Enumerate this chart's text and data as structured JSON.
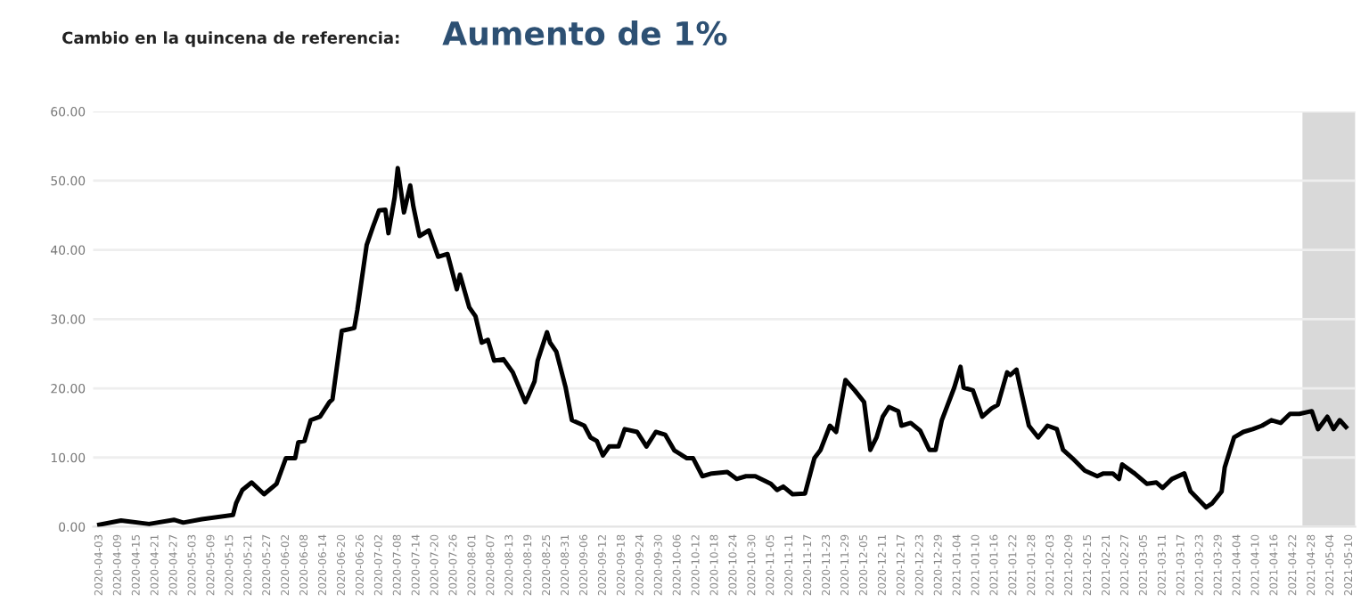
{
  "chart_data": {
    "type": "line",
    "title": "Cambio en la quincena de referencia:",
    "subtitle": "Aumento de 1%",
    "x": [
      "2020-04-03",
      "2020-04-10",
      "2020-04-19",
      "2020-04-27",
      "2020-04-30",
      "2020-05-06",
      "2020-05-16",
      "2020-05-17",
      "2020-05-19",
      "2020-05-22",
      "2020-05-26",
      "2020-05-30",
      "2020-06-02",
      "2020-06-05",
      "2020-06-06",
      "2020-06-08",
      "2020-06-10",
      "2020-06-13",
      "2020-06-16",
      "2020-06-17",
      "2020-06-20",
      "2020-06-24",
      "2020-06-25",
      "2020-06-28",
      "2020-06-30",
      "2020-07-02",
      "2020-07-04",
      "2020-07-05",
      "2020-07-07",
      "2020-07-08",
      "2020-07-10",
      "2020-07-12",
      "2020-07-13",
      "2020-07-15",
      "2020-07-18",
      "2020-07-21",
      "2020-07-24",
      "2020-07-27",
      "2020-07-28",
      "2020-07-31",
      "2020-08-02",
      "2020-08-04",
      "2020-08-06",
      "2020-08-08",
      "2020-08-11",
      "2020-08-14",
      "2020-08-18",
      "2020-08-19",
      "2020-08-21",
      "2020-08-22",
      "2020-08-25",
      "2020-08-26",
      "2020-08-28",
      "2020-08-31",
      "2020-09-02",
      "2020-09-06",
      "2020-09-08",
      "2020-09-10",
      "2020-09-12",
      "2020-09-14",
      "2020-09-17",
      "2020-09-19",
      "2020-09-23",
      "2020-09-26",
      "2020-09-29",
      "2020-10-02",
      "2020-10-05",
      "2020-10-09",
      "2020-10-11",
      "2020-10-14",
      "2020-10-17",
      "2020-10-22",
      "2020-10-25",
      "2020-10-28",
      "2020-10-31",
      "2020-11-05",
      "2020-11-07",
      "2020-11-09",
      "2020-11-12",
      "2020-11-16",
      "2020-11-19",
      "2020-11-21",
      "2020-11-24",
      "2020-11-26",
      "2020-11-29",
      "2020-12-02",
      "2020-12-05",
      "2020-12-07",
      "2020-12-09",
      "2020-12-11",
      "2020-12-13",
      "2020-12-16",
      "2020-12-17",
      "2020-12-20",
      "2020-12-23",
      "2020-12-26",
      "2020-12-28",
      "2020-12-30",
      "2021-01-03",
      "2021-01-05",
      "2021-01-06",
      "2021-01-09",
      "2021-01-12",
      "2021-01-15",
      "2021-01-17",
      "2021-01-20",
      "2021-01-21",
      "2021-01-23",
      "2021-01-24",
      "2021-01-27",
      "2021-01-30",
      "2021-02-02",
      "2021-02-05",
      "2021-02-07",
      "2021-02-10",
      "2021-02-14",
      "2021-02-18",
      "2021-02-20",
      "2021-02-23",
      "2021-02-25",
      "2021-02-26",
      "2021-03-02",
      "2021-03-06",
      "2021-03-09",
      "2021-03-11",
      "2021-03-14",
      "2021-03-18",
      "2021-03-20",
      "2021-03-25",
      "2021-03-27",
      "2021-03-30",
      "2021-03-31",
      "2021-04-03",
      "2021-04-06",
      "2021-04-09",
      "2021-04-12",
      "2021-04-15",
      "2021-04-18",
      "2021-04-21",
      "2021-04-24",
      "2021-04-28",
      "2021-04-30",
      "2021-05-03",
      "2021-05-05",
      "2021-05-07",
      "2021-05-09"
    ],
    "series": [
      {
        "color": "#000000",
        "values": [
          0.3,
          0.9,
          0.4,
          1.0,
          0.6,
          1.1,
          1.7,
          3.4,
          5.3,
          6.4,
          4.7,
          6.2,
          9.9,
          9.9,
          12.2,
          12.4,
          15.4,
          15.9,
          18.0,
          18.4,
          28.3,
          28.7,
          31.3,
          40.7,
          43.3,
          45.7,
          45.8,
          42.4,
          47.6,
          51.8,
          45.4,
          49.3,
          46.3,
          42.0,
          42.8,
          39.0,
          39.4,
          34.3,
          36.4,
          31.7,
          30.4,
          26.6,
          27.0,
          24.0,
          24.2,
          22.3,
          18.0,
          18.9,
          21.0,
          24.0,
          28.1,
          26.6,
          25.3,
          20.1,
          15.4,
          14.6,
          12.9,
          12.4,
          10.3,
          11.6,
          11.6,
          14.1,
          13.7,
          11.6,
          13.7,
          13.3,
          11.0,
          9.9,
          9.9,
          7.3,
          7.7,
          7.9,
          6.9,
          7.3,
          7.3,
          6.2,
          5.3,
          5.8,
          4.7,
          4.8,
          9.9,
          11.1,
          14.6,
          13.7,
          21.2,
          19.7,
          18.0,
          11.1,
          12.9,
          15.9,
          17.3,
          16.7,
          14.6,
          15.0,
          13.9,
          11.1,
          11.1,
          15.4,
          20.1,
          23.1,
          20.1,
          19.7,
          15.9,
          17.1,
          17.6,
          22.3,
          21.9,
          22.7,
          20.6,
          14.6,
          12.9,
          14.6,
          14.1,
          11.1,
          9.9,
          8.1,
          7.3,
          7.7,
          7.7,
          6.9,
          9.0,
          7.7,
          6.2,
          6.4,
          5.6,
          6.9,
          7.7,
          5.1,
          2.8,
          3.4,
          5.1,
          8.6,
          12.9,
          13.7,
          14.1,
          14.6,
          15.4,
          15.0,
          16.3,
          16.3,
          16.7,
          14.1,
          15.9,
          14.1,
          15.4,
          14.4
        ]
      }
    ],
    "xlim": [
      "2020-04-01",
      "2021-05-12"
    ],
    "xticks": [
      "2020-04-03",
      "2020-04-09",
      "2020-04-15",
      "2020-04-21",
      "2020-04-27",
      "2020-05-03",
      "2020-05-09",
      "2020-05-15",
      "2020-05-21",
      "2020-05-27",
      "2020-06-02",
      "2020-06-08",
      "2020-06-14",
      "2020-06-20",
      "2020-06-26",
      "2020-07-02",
      "2020-07-08",
      "2020-07-14",
      "2020-07-20",
      "2020-07-26",
      "2020-08-01",
      "2020-08-07",
      "2020-08-13",
      "2020-08-19",
      "2020-08-25",
      "2020-08-31",
      "2020-09-06",
      "2020-09-12",
      "2020-09-18",
      "2020-09-24",
      "2020-09-30",
      "2020-10-06",
      "2020-10-12",
      "2020-10-18",
      "2020-10-24",
      "2020-10-30",
      "2020-11-05",
      "2020-11-11",
      "2020-11-17",
      "2020-11-23",
      "2020-11-29",
      "2020-12-05",
      "2020-12-11",
      "2020-12-17",
      "2020-12-23",
      "2020-12-29",
      "2021-01-04",
      "2021-01-10",
      "2021-01-16",
      "2021-01-22",
      "2021-01-28",
      "2021-02-03",
      "2021-02-09",
      "2021-02-15",
      "2021-02-21",
      "2021-02-27",
      "2021-03-05",
      "2021-03-11",
      "2021-03-17",
      "2021-03-23",
      "2021-03-29",
      "2021-04-04",
      "2021-04-10",
      "2021-04-16",
      "2021-04-22",
      "2021-04-28",
      "2021-05-04",
      "2021-05-10"
    ],
    "ylim": [
      0,
      60
    ],
    "yticks": [
      {
        "value": 0,
        "label": "0.00"
      },
      {
        "value": 10,
        "label": "10.00"
      },
      {
        "value": 20,
        "label": "20.00"
      },
      {
        "value": 30,
        "label": "30.00"
      },
      {
        "value": 40,
        "label": "40.00"
      },
      {
        "value": 50,
        "label": "50.00"
      },
      {
        "value": 60,
        "label": "60.00"
      }
    ],
    "bands": [
      {
        "axis": "x",
        "from": "2021-04-25",
        "to": "2021-05-12",
        "color": "#d9d9d9"
      }
    ],
    "grid": "y",
    "line_style": "solid",
    "marker": "none",
    "legend": false
  }
}
